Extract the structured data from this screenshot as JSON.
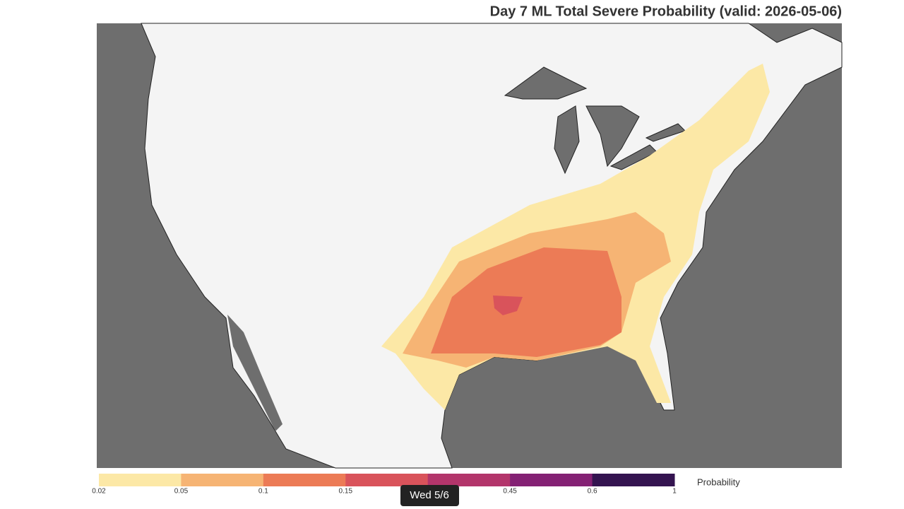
{
  "title": "Day 7 ML Total Severe Probability (valid: 2026-05-06)",
  "colorbar": {
    "label": "Probability",
    "ticks": [
      0.02,
      0.05,
      0.1,
      0.15,
      null,
      0.45,
      0.6,
      1
    ],
    "colors": [
      "#fce8a6",
      "#f6b474",
      "#ec7b56",
      "#d9535b",
      "#b3356b",
      "#842174",
      "#341450"
    ]
  },
  "tooltip": "Wed 5/6"
}
